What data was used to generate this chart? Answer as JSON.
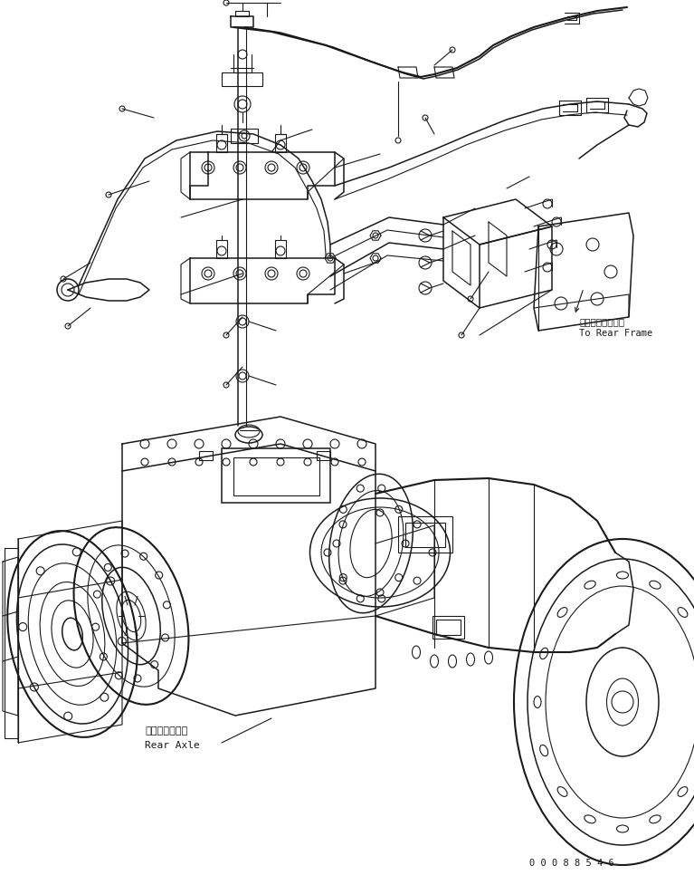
{
  "bg_color": "#ffffff",
  "line_color": "#1a1a1a",
  "fig_width": 7.67,
  "fig_height": 9.66,
  "dpi": 100,
  "part_number": "0 0 0 8 8 5 4 6",
  "annotation_rear_frame_jp": "リヤーフレームヘ",
  "annotation_rear_frame_en": "To Rear Frame",
  "annotation_rear_axle_jp": "リヤーアクスル",
  "annotation_rear_axle_en": "Rear Axle"
}
